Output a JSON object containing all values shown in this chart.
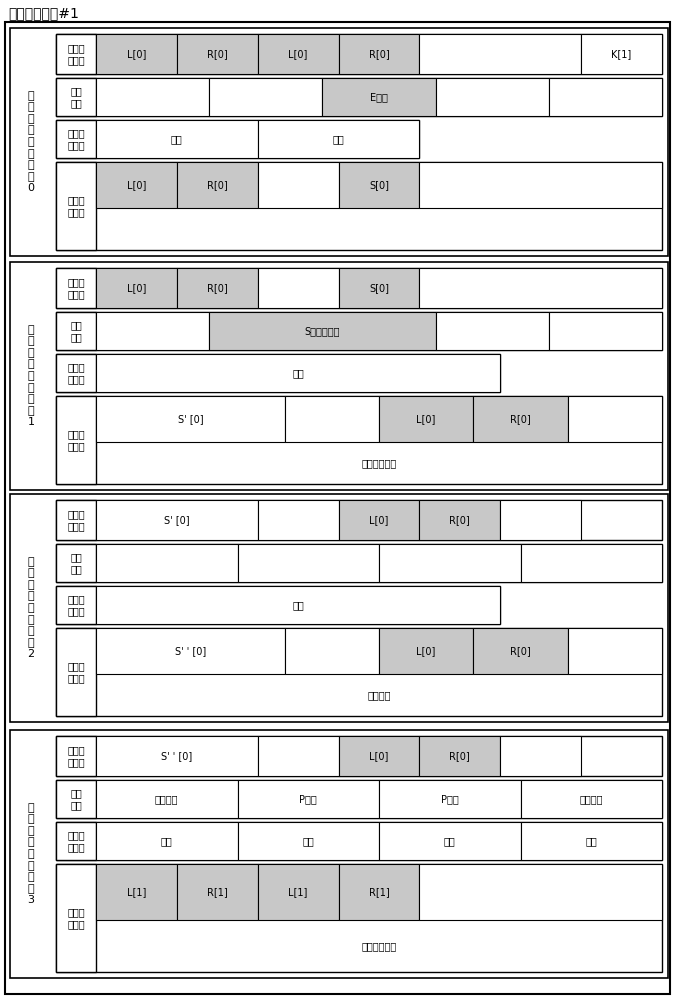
{
  "title": "可重构阵列块#1",
  "rows": [
    {
      "row_label": "可\n重\n构\n阵\n列\n运\n算\n行\n0",
      "data_in_label": "数据输\n入单元",
      "data_in_boxes": [
        {
          "text": "L[0]",
          "shade": true,
          "span": 1
        },
        {
          "text": "R[0]",
          "shade": true,
          "span": 1
        },
        {
          "text": "L[0]",
          "shade": true,
          "span": 1
        },
        {
          "text": "R[0]",
          "shade": true,
          "span": 1
        },
        {
          "text": "",
          "shade": false,
          "span": 2
        },
        {
          "text": "K[1]",
          "shade": false,
          "span": 1
        }
      ],
      "switch_label": "置换\n网络",
      "switch_boxes": [
        {
          "text": "",
          "shade": false,
          "span": 1
        },
        {
          "text": "",
          "shade": false,
          "span": 1
        },
        {
          "text": "E变换",
          "shade": true,
          "span": 1
        },
        {
          "text": "",
          "shade": false,
          "span": 1
        },
        {
          "text": "",
          "shade": false,
          "span": 1
        }
      ],
      "alu_label": "算术逻\n辑单元",
      "alu_boxes": [
        {
          "text": "直通",
          "span": 1
        },
        {
          "text": "异或",
          "span": 1
        }
      ],
      "alu_indent": true,
      "data_out_label": "数据输\n出单元",
      "data_out_boxes": [
        {
          "text": "L[0]",
          "shade": true,
          "span": 1
        },
        {
          "text": "R[0]",
          "shade": true,
          "span": 1
        },
        {
          "text": "",
          "shade": false,
          "span": 1
        },
        {
          "text": "S[0]",
          "shade": true,
          "span": 1
        },
        {
          "text": "",
          "shade": false,
          "span": 3
        }
      ],
      "data_out_note": ""
    },
    {
      "row_label": "可\n重\n构\n阵\n列\n运\n算\n行\n1",
      "data_in_label": "数据输\n入单元",
      "data_in_boxes": [
        {
          "text": "L[0]",
          "shade": true,
          "span": 1
        },
        {
          "text": "R[0]",
          "shade": true,
          "span": 1
        },
        {
          "text": "",
          "shade": false,
          "span": 1
        },
        {
          "text": "S[0]",
          "shade": true,
          "span": 1
        },
        {
          "text": "",
          "shade": false,
          "span": 3
        }
      ],
      "switch_label": "置换\n网络",
      "switch_boxes": [
        {
          "text": "",
          "shade": false,
          "span": 1
        },
        {
          "text": "S盒地址移位",
          "shade": true,
          "span": 2
        },
        {
          "text": "",
          "shade": false,
          "span": 1
        },
        {
          "text": "",
          "shade": false,
          "span": 1
        }
      ],
      "alu_label": "算术逻\n辑单元",
      "alu_boxes": [
        {
          "text": "直通",
          "span": 3
        }
      ],
      "alu_indent": true,
      "data_out_label": "数据输\n出单元",
      "data_out_boxes": [
        {
          "text": "S' [0]",
          "shade": false,
          "span": 2
        },
        {
          "text": "",
          "shade": false,
          "span": 1
        },
        {
          "text": "L[0]",
          "shade": true,
          "span": 1
        },
        {
          "text": "R[0]",
          "shade": true,
          "span": 1
        },
        {
          "text": "",
          "shade": false,
          "span": 1
        }
      ],
      "data_out_note": "输出用于查表"
    },
    {
      "row_label": "可\n重\n构\n阵\n列\n运\n算\n行\n2",
      "data_in_label": "数据输\n入单元",
      "data_in_boxes": [
        {
          "text": "S' [0]",
          "shade": false,
          "span": 2
        },
        {
          "text": "",
          "shade": false,
          "span": 1
        },
        {
          "text": "L[0]",
          "shade": true,
          "span": 1
        },
        {
          "text": "R[0]",
          "shade": true,
          "span": 1
        },
        {
          "text": "",
          "shade": false,
          "span": 1
        }
      ],
      "switch_label": "置换\n网络",
      "switch_boxes": [
        {
          "text": "",
          "shade": false,
          "span": 1
        },
        {
          "text": "",
          "shade": false,
          "span": 1
        },
        {
          "text": "",
          "shade": false,
          "span": 1
        },
        {
          "text": "",
          "shade": false,
          "span": 1
        }
      ],
      "alu_label": "算术逻\n辑单元",
      "alu_boxes": [
        {
          "text": "直通",
          "span": 3
        }
      ],
      "alu_indent": true,
      "data_out_label": "数据输\n出单元",
      "data_out_boxes": [
        {
          "text": "S' ' [0]",
          "shade": false,
          "span": 2
        },
        {
          "text": "",
          "shade": false,
          "span": 1
        },
        {
          "text": "L[0]",
          "shade": true,
          "span": 1
        },
        {
          "text": "R[0]",
          "shade": true,
          "span": 1
        },
        {
          "text": "",
          "shade": false,
          "span": 1
        }
      ],
      "data_out_note": "查表输出"
    },
    {
      "row_label": "可\n重\n构\n阵\n列\n运\n算\n行\n3",
      "data_in_label": "数据输\n入单元",
      "data_in_boxes": [
        {
          "text": "S' ' [0]",
          "shade": false,
          "span": 2
        },
        {
          "text": "",
          "shade": false,
          "span": 1
        },
        {
          "text": "L[0]",
          "shade": true,
          "span": 1
        },
        {
          "text": "R[0]",
          "shade": true,
          "span": 1
        },
        {
          "text": "",
          "shade": false,
          "span": 1
        }
      ],
      "switch_label": "置换\n网络",
      "switch_boxes": [
        {
          "text": "字节移位",
          "shade": false,
          "span": 1
        },
        {
          "text": "P变换",
          "shade": false,
          "span": 1
        },
        {
          "text": "P变换",
          "shade": false,
          "span": 1
        },
        {
          "text": "字节移位",
          "shade": false,
          "span": 1
        }
      ],
      "alu_label": "算术逻\n辑单元",
      "alu_boxes": [
        {
          "text": "直通",
          "span": 1
        },
        {
          "text": "异或",
          "span": 1
        },
        {
          "text": "直通",
          "span": 1
        },
        {
          "text": "异或",
          "span": 1
        }
      ],
      "alu_indent": true,
      "data_out_label": "数据输\n出单元",
      "data_out_boxes": [
        {
          "text": "L[1]",
          "shade": true,
          "span": 1
        },
        {
          "text": "R[1]",
          "shade": true,
          "span": 1
        },
        {
          "text": "L[1]",
          "shade": true,
          "span": 1
        },
        {
          "text": "R[1]",
          "shade": true,
          "span": 1
        },
        {
          "text": "",
          "shade": false,
          "span": 3
        }
      ],
      "data_out_note": "输出到下一行"
    }
  ]
}
